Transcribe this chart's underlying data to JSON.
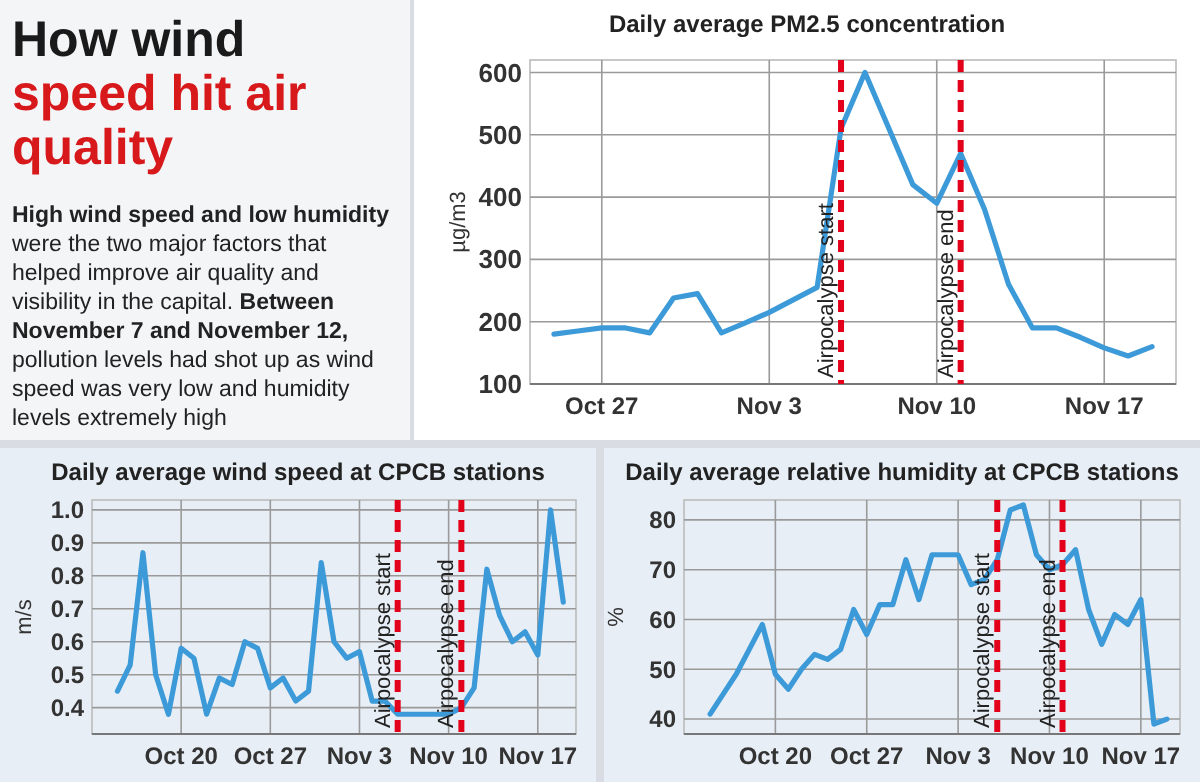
{
  "chart_data": [
    {
      "type": "other",
      "title": "How wind speed hit air quality",
      "annotations": [
        "High wind speed and low humidity",
        "were the two major factors that helped improve air quality and visibility in the capital.",
        "Between November 7 and November 12,",
        "pollution levels had shot up as wind speed was very low and humidity levels extremely high"
      ]
    },
    {
      "type": "line",
      "title": "Daily average PM2.5 concentration",
      "ylabel": "µg/m3",
      "color": "#3d9ad8",
      "x": [
        "--10-25",
        "--10-26",
        "--10-27",
        "--10-28",
        "--10-29",
        "--10-30",
        "--10-31",
        "--11-01",
        "--11-02",
        "--11-03",
        "--11-04",
        "--11-05",
        "--11-06",
        "--11-07",
        "--11-08",
        "--11-09",
        "--11-10",
        "--11-11",
        "--11-12",
        "--11-13",
        "--11-14",
        "--11-15",
        "--11-16",
        "--11-17",
        "--11-18",
        "--11-19"
      ],
      "values": [
        180,
        185,
        190,
        190,
        182,
        238,
        245,
        182,
        198,
        215,
        235,
        255,
        510,
        600,
        510,
        420,
        390,
        470,
        380,
        260,
        190,
        190,
        175,
        158,
        145,
        160
      ],
      "xlim": [
        "--10-24",
        "--11-20"
      ],
      "ylim": [
        100,
        620
      ],
      "xticks": [
        {
          "value": "--10-27",
          "label": "Oct 27"
        },
        {
          "value": "--11-03",
          "label": "Nov 3"
        },
        {
          "value": "--11-10",
          "label": "Nov 10"
        },
        {
          "value": "--11-17",
          "label": "Nov 17"
        }
      ],
      "yticks": [
        100,
        200,
        300,
        400,
        500,
        600
      ],
      "grid": true,
      "ref_lines": [
        {
          "axis": "x",
          "value": "--11-06",
          "label": "Airpocalypse start",
          "color": "#e3001b",
          "line_style": "dashed"
        },
        {
          "axis": "x",
          "value": "--11-11",
          "label": "Airpocalypse end",
          "color": "#e3001b",
          "line_style": "dashed"
        }
      ]
    },
    {
      "type": "line",
      "title": "Daily average wind speed at CPCB stations",
      "ylabel": "m/s",
      "color": "#3d9ad8",
      "x": [
        "--10-15",
        "--10-16",
        "--10-17",
        "--10-18",
        "--10-19",
        "--10-20",
        "--10-21",
        "--10-22",
        "--10-23",
        "--10-24",
        "--10-25",
        "--10-26",
        "--10-27",
        "--10-28",
        "--10-29",
        "--10-30",
        "--10-31",
        "--11-01",
        "--11-02",
        "--11-03",
        "--11-04",
        "--11-05",
        "--11-06",
        "--11-07",
        "--11-08",
        "--11-09",
        "--11-10",
        "--11-11",
        "--11-12",
        "--11-13",
        "--11-14",
        "--11-15",
        "--11-16",
        "--11-17",
        "--11-18",
        "--11-19"
      ],
      "values": [
        0.45,
        0.53,
        0.87,
        0.5,
        0.38,
        0.58,
        0.55,
        0.38,
        0.49,
        0.47,
        0.6,
        0.58,
        0.46,
        0.49,
        0.42,
        0.45,
        0.84,
        0.6,
        0.55,
        0.57,
        0.42,
        0.42,
        0.38,
        0.38,
        0.38,
        0.38,
        0.38,
        0.4,
        0.46,
        0.82,
        0.68,
        0.6,
        0.63,
        0.56,
        1.0,
        0.72
      ],
      "xlim": [
        "--10-13",
        "--11-20"
      ],
      "ylim": [
        0.32,
        1.03
      ],
      "xticks": [
        {
          "value": "--10-20",
          "label": "Oct 20"
        },
        {
          "value": "--10-27",
          "label": "Oct 27"
        },
        {
          "value": "--11-03",
          "label": "Nov 3"
        },
        {
          "value": "--11-10",
          "label": "Nov 10"
        },
        {
          "value": "--11-17",
          "label": "Nov 17"
        }
      ],
      "yticks": [
        0.4,
        0.5,
        0.6,
        0.7,
        0.8,
        0.9,
        {
          "value": 1,
          "label": "1.0"
        }
      ],
      "grid": true,
      "ref_lines": [
        {
          "axis": "x",
          "value": "--11-06",
          "label": "Airpocalypse start",
          "color": "#e3001b",
          "line_style": "dashed"
        },
        {
          "axis": "x",
          "value": "--11-11",
          "label": "Airpocalypse end",
          "color": "#e3001b",
          "line_style": "dashed"
        }
      ]
    },
    {
      "type": "line",
      "title": "Daily average relative humidity at CPCB stations",
      "ylabel": "%",
      "color": "#3d9ad8",
      "x": [
        "--10-15",
        "--10-16",
        "--10-17",
        "--10-18",
        "--10-19",
        "--10-20",
        "--10-21",
        "--10-22",
        "--10-23",
        "--10-24",
        "--10-25",
        "--10-26",
        "--10-27",
        "--10-28",
        "--10-29",
        "--10-30",
        "--10-31",
        "--11-01",
        "--11-02",
        "--11-03",
        "--11-04",
        "--11-05",
        "--11-06",
        "--11-07",
        "--11-08",
        "--11-09",
        "--11-10",
        "--11-11",
        "--11-12",
        "--11-13",
        "--11-14",
        "--11-15",
        "--11-16",
        "--11-17",
        "--11-18",
        "--11-19"
      ],
      "values": [
        41,
        45,
        49,
        54,
        59,
        49,
        46,
        50,
        53,
        52,
        54,
        62,
        57,
        63,
        63,
        72,
        64,
        73,
        73,
        73,
        67,
        68,
        72,
        82,
        83,
        73,
        70,
        71,
        74,
        62,
        55,
        61,
        59,
        64,
        39,
        40
      ],
      "xlim": [
        "--10-13",
        "--11-20"
      ],
      "ylim": [
        37,
        84
      ],
      "xticks": [
        {
          "value": "--10-20",
          "label": "Oct 20"
        },
        {
          "value": "--10-27",
          "label": "Oct 27"
        },
        {
          "value": "--11-03",
          "label": "Nov 3"
        },
        {
          "value": "--11-10",
          "label": "Nov 10"
        },
        {
          "value": "--11-17",
          "label": "Nov 17"
        }
      ],
      "yticks": [
        40,
        50,
        60,
        70,
        80
      ],
      "grid": true,
      "ref_lines": [
        {
          "axis": "x",
          "value": "--11-06",
          "label": "Airpocalypse start",
          "color": "#e3001b",
          "line_style": "dashed"
        },
        {
          "axis": "x",
          "value": "--11-11",
          "label": "Airpocalypse end",
          "color": "#e3001b",
          "line_style": "dashed"
        }
      ]
    }
  ]
}
